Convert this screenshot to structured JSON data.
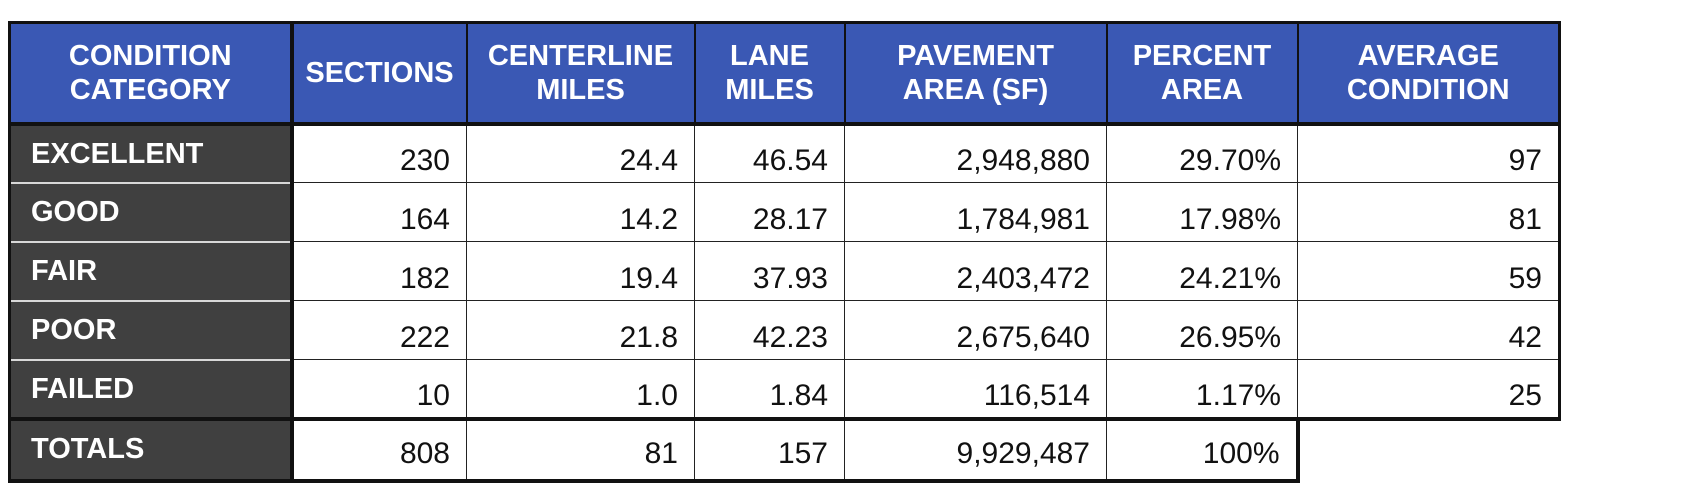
{
  "table": {
    "headers": [
      "CONDITION\nCATEGORY",
      "SECTIONS",
      "CENTERLINE\nMILES",
      "LANE\nMILES",
      "PAVEMENT\nAREA (SF)",
      "PERCENT\nAREA",
      "AVERAGE\nCONDITION"
    ],
    "rows": [
      {
        "category": "EXCELLENT",
        "sections": "230",
        "centerline_miles": "24.4",
        "lane_miles": "46.54",
        "pavement_area": "2,948,880",
        "percent_area": "29.70%",
        "average_condition": "97"
      },
      {
        "category": "GOOD",
        "sections": "164",
        "centerline_miles": "14.2",
        "lane_miles": "28.17",
        "pavement_area": "1,784,981",
        "percent_area": "17.98%",
        "average_condition": "81"
      },
      {
        "category": "FAIR",
        "sections": "182",
        "centerline_miles": "19.4",
        "lane_miles": "37.93",
        "pavement_area": "2,403,472",
        "percent_area": "24.21%",
        "average_condition": "59"
      },
      {
        "category": "POOR",
        "sections": "222",
        "centerline_miles": "21.8",
        "lane_miles": "42.23",
        "pavement_area": "2,675,640",
        "percent_area": "26.95%",
        "average_condition": "42"
      },
      {
        "category": "FAILED",
        "sections": "10",
        "centerline_miles": "1.0",
        "lane_miles": "1.84",
        "pavement_area": "116,514",
        "percent_area": "1.17%",
        "average_condition": "25"
      }
    ],
    "totals": {
      "category": "TOTALS",
      "sections": "808",
      "centerline_miles": "81",
      "lane_miles": "157",
      "pavement_area": "9,929,487",
      "percent_area": "100%"
    },
    "colors": {
      "header_bg": "#3a58b4",
      "category_bg": "#404040",
      "text_dark": "#111111",
      "text_light": "#ffffff"
    }
  }
}
